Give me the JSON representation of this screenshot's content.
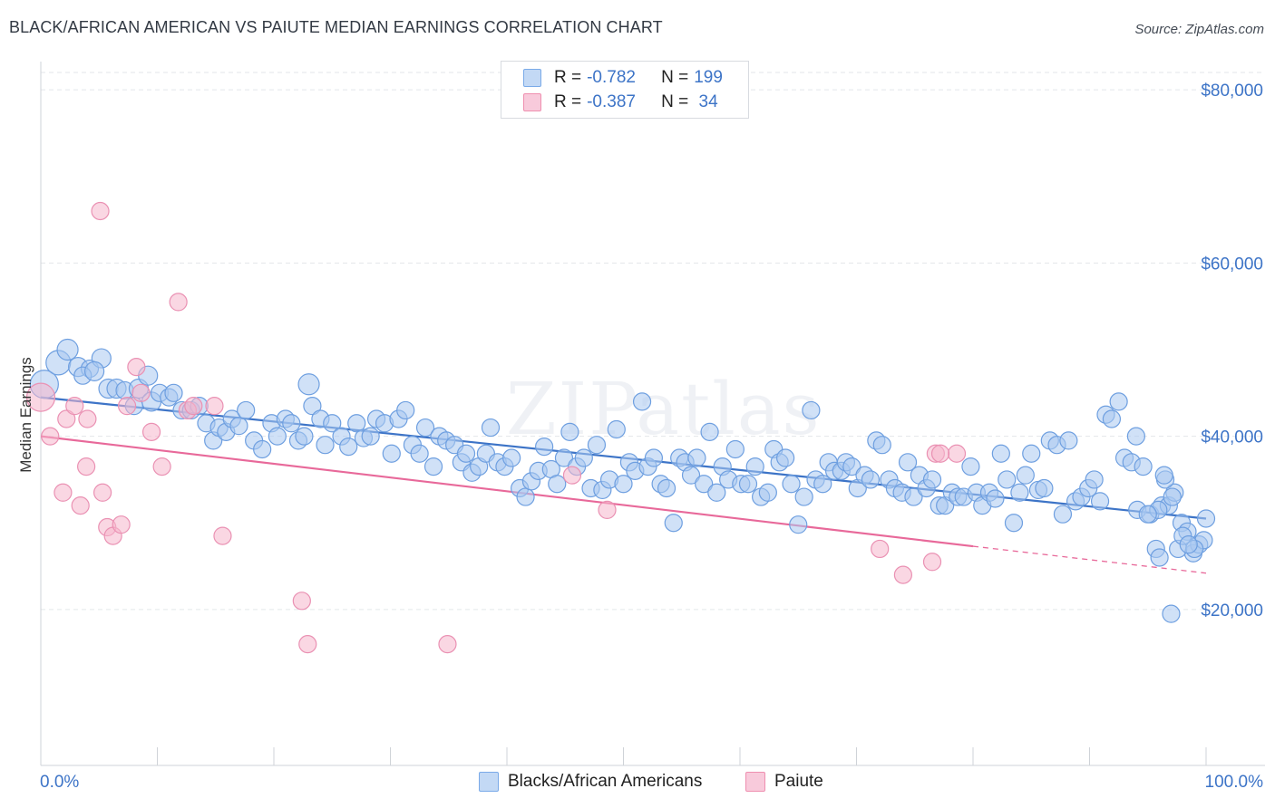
{
  "title": "BLACK/AFRICAN AMERICAN VS PAIUTE MEDIAN EARNINGS CORRELATION CHART",
  "source": "Source: ZipAtlas.com",
  "watermark": "ZIPatlas",
  "legend": {
    "rows": [
      {
        "r_label": "R = ",
        "r_value": "-0.782",
        "n_label": "N = ",
        "n_value": "199",
        "color": "#7aaae8",
        "fill": "#c3d9f5"
      },
      {
        "r_label": "R = ",
        "r_value": "-0.387",
        "n_label": "N = ",
        "n_value": " 34",
        "color": "#ef8fb0",
        "fill": "#f8cadb"
      }
    ]
  },
  "bottom_legend": [
    {
      "label": "Blacks/African Americans",
      "color": "#7aaae8",
      "fill": "#c3d9f5"
    },
    {
      "label": "Paiute",
      "color": "#ef8fb0",
      "fill": "#f8cadb"
    }
  ],
  "chart_data": {
    "type": "scatter",
    "title": "BLACK/AFRICAN AMERICAN VS PAIUTE MEDIAN EARNINGS CORRELATION CHART",
    "xlabel": "",
    "ylabel": "Median Earnings",
    "x_tick_labels": [
      "0.0%",
      "100.0%"
    ],
    "y_ticks": [
      20000,
      40000,
      60000,
      80000
    ],
    "y_tick_labels": [
      "$20,000",
      "$40,000",
      "$60,000",
      "$80,000"
    ],
    "xlim": [
      0,
      100
    ],
    "ylim": [
      2000,
      82000
    ],
    "grid": "horizontal dashed",
    "legend_position": "top-center",
    "series": [
      {
        "name": "Blacks/African Americans",
        "color": "#3d74c7",
        "point_fill": "#a9c8f0",
        "point_stroke": "#6e9fe0",
        "trend": {
          "x": [
            0,
            100
          ],
          "y": [
            44500,
            30500
          ],
          "dashed_from": null
        },
        "points": [
          [
            0.3,
            46000,
            14
          ],
          [
            1.5,
            48500,
            12
          ],
          [
            2.3,
            50000,
            10
          ],
          [
            3.2,
            48000,
            9
          ],
          [
            4.2,
            47800,
            8
          ],
          [
            5.2,
            49000,
            9
          ],
          [
            3.6,
            47000,
            8
          ],
          [
            4.6,
            47500,
            9
          ],
          [
            5.8,
            45500,
            9
          ],
          [
            6.5,
            45500,
            9
          ],
          [
            7.2,
            45300,
            8
          ],
          [
            8.4,
            45500,
            9
          ],
          [
            9.2,
            47000,
            9
          ],
          [
            9.5,
            44000,
            9
          ],
          [
            8.0,
            43500,
            8
          ],
          [
            10.2,
            45000,
            8
          ],
          [
            11.0,
            44500,
            8
          ],
          [
            11.4,
            45000,
            8
          ],
          [
            12.1,
            43000,
            8
          ],
          [
            12.9,
            43000,
            8
          ],
          [
            13.6,
            43500,
            8
          ],
          [
            14.2,
            41500,
            8
          ],
          [
            14.8,
            39500,
            8
          ],
          [
            15.3,
            41000,
            8
          ],
          [
            15.9,
            40500,
            8
          ],
          [
            16.4,
            42000,
            8
          ],
          [
            17.0,
            41200,
            8
          ],
          [
            17.6,
            43000,
            8
          ],
          [
            18.3,
            39500,
            8
          ],
          [
            19.0,
            38500,
            8
          ],
          [
            19.8,
            41500,
            8
          ],
          [
            20.3,
            40000,
            8
          ],
          [
            21.0,
            42000,
            8
          ],
          [
            21.5,
            41500,
            8
          ],
          [
            22.1,
            39500,
            8
          ],
          [
            22.6,
            40000,
            8
          ],
          [
            23.3,
            43500,
            8
          ],
          [
            24.0,
            42000,
            8
          ],
          [
            24.4,
            39000,
            8
          ],
          [
            25.0,
            41500,
            8
          ],
          [
            23.0,
            46000,
            10
          ],
          [
            25.8,
            40000,
            8
          ],
          [
            26.4,
            38800,
            8
          ],
          [
            27.1,
            41500,
            8
          ],
          [
            27.7,
            39800,
            8
          ],
          [
            28.3,
            40000,
            8
          ],
          [
            28.8,
            42000,
            8
          ],
          [
            29.5,
            41500,
            8
          ],
          [
            30.1,
            38000,
            8
          ],
          [
            30.7,
            42000,
            8
          ],
          [
            31.3,
            43000,
            8
          ],
          [
            31.9,
            39000,
            8
          ],
          [
            32.5,
            38000,
            8
          ],
          [
            33.0,
            41000,
            8
          ],
          [
            33.7,
            36500,
            8
          ],
          [
            34.2,
            40000,
            8
          ],
          [
            34.8,
            39500,
            8
          ],
          [
            35.5,
            39000,
            8
          ],
          [
            36.1,
            37000,
            8
          ],
          [
            36.5,
            38000,
            8
          ],
          [
            37.0,
            35800,
            8
          ],
          [
            37.6,
            36500,
            8
          ],
          [
            38.2,
            38000,
            8
          ],
          [
            38.6,
            41000,
            8
          ],
          [
            39.2,
            37000,
            8
          ],
          [
            39.8,
            36500,
            8
          ],
          [
            40.4,
            37500,
            8
          ],
          [
            41.1,
            34000,
            8
          ],
          [
            41.6,
            33000,
            8
          ],
          [
            42.1,
            34800,
            8
          ],
          [
            42.7,
            36000,
            8
          ],
          [
            43.2,
            38800,
            8
          ],
          [
            43.8,
            36200,
            8
          ],
          [
            44.3,
            34500,
            8
          ],
          [
            44.9,
            37500,
            8
          ],
          [
            45.4,
            40500,
            8
          ],
          [
            46.0,
            36500,
            8
          ],
          [
            46.6,
            37500,
            8
          ],
          [
            47.2,
            34000,
            8
          ],
          [
            47.7,
            39000,
            8
          ],
          [
            48.2,
            33800,
            8
          ],
          [
            48.8,
            35000,
            8
          ],
          [
            49.4,
            40800,
            8
          ],
          [
            50.0,
            34500,
            8
          ],
          [
            50.5,
            37000,
            8
          ],
          [
            51.0,
            36000,
            8
          ],
          [
            51.6,
            44000,
            8
          ],
          [
            52.1,
            36500,
            8
          ],
          [
            52.6,
            37500,
            8
          ],
          [
            53.2,
            34500,
            8
          ],
          [
            53.7,
            34000,
            8
          ],
          [
            54.3,
            30000,
            8
          ],
          [
            54.8,
            37500,
            8
          ],
          [
            55.3,
            37000,
            8
          ],
          [
            55.8,
            35500,
            8
          ],
          [
            56.3,
            37500,
            8
          ],
          [
            56.9,
            34500,
            8
          ],
          [
            57.4,
            40500,
            8
          ],
          [
            58.0,
            33500,
            8
          ],
          [
            58.5,
            36500,
            8
          ],
          [
            59.0,
            35000,
            8
          ],
          [
            59.6,
            38500,
            8
          ],
          [
            60.1,
            34500,
            8
          ],
          [
            60.7,
            34500,
            8
          ],
          [
            61.3,
            36500,
            8
          ],
          [
            61.8,
            33000,
            8
          ],
          [
            62.4,
            33500,
            8
          ],
          [
            62.9,
            38500,
            8
          ],
          [
            63.4,
            37000,
            8
          ],
          [
            63.9,
            37500,
            8
          ],
          [
            64.4,
            34500,
            8
          ],
          [
            65.0,
            29800,
            8
          ],
          [
            65.5,
            33000,
            8
          ],
          [
            66.1,
            43000,
            8
          ],
          [
            66.5,
            35000,
            8
          ],
          [
            67.1,
            34500,
            8
          ],
          [
            67.6,
            37000,
            8
          ],
          [
            68.1,
            36000,
            8
          ],
          [
            68.7,
            36000,
            8
          ],
          [
            69.1,
            37000,
            8
          ],
          [
            69.6,
            36500,
            8
          ],
          [
            70.1,
            34000,
            8
          ],
          [
            70.7,
            35500,
            8
          ],
          [
            71.2,
            35000,
            8
          ],
          [
            71.7,
            39500,
            8
          ],
          [
            72.2,
            39000,
            8
          ],
          [
            72.8,
            35000,
            8
          ],
          [
            73.3,
            34000,
            8
          ],
          [
            73.9,
            33500,
            8
          ],
          [
            74.4,
            37000,
            8
          ],
          [
            74.9,
            33000,
            8
          ],
          [
            75.4,
            35500,
            8
          ],
          [
            76.0,
            34000,
            8
          ],
          [
            76.5,
            35000,
            8
          ],
          [
            77.1,
            32000,
            8
          ],
          [
            77.6,
            32000,
            8
          ],
          [
            78.2,
            33500,
            8
          ],
          [
            78.7,
            33000,
            8
          ],
          [
            79.2,
            33000,
            8
          ],
          [
            79.8,
            36500,
            8
          ],
          [
            80.3,
            33500,
            8
          ],
          [
            80.8,
            32000,
            8
          ],
          [
            81.4,
            33500,
            8
          ],
          [
            81.9,
            32800,
            8
          ],
          [
            82.4,
            38000,
            8
          ],
          [
            82.9,
            35000,
            8
          ],
          [
            83.5,
            30000,
            8
          ],
          [
            84.0,
            33500,
            8
          ],
          [
            84.5,
            35500,
            8
          ],
          [
            85.0,
            38000,
            8
          ],
          [
            85.6,
            33800,
            8
          ],
          [
            86.1,
            34000,
            8
          ],
          [
            86.6,
            39500,
            8
          ],
          [
            87.2,
            39000,
            8
          ],
          [
            87.7,
            31000,
            8
          ],
          [
            88.2,
            39500,
            8
          ],
          [
            88.8,
            32500,
            8
          ],
          [
            89.3,
            33000,
            8
          ],
          [
            89.9,
            34000,
            8
          ],
          [
            90.4,
            35000,
            8
          ],
          [
            90.9,
            32500,
            8
          ],
          [
            91.4,
            42500,
            8
          ],
          [
            91.9,
            42000,
            8
          ],
          [
            92.5,
            44000,
            8
          ],
          [
            93.0,
            37500,
            8
          ],
          [
            93.6,
            37000,
            8
          ],
          [
            94.1,
            31500,
            8
          ],
          [
            94.6,
            36500,
            8
          ],
          [
            95.2,
            31000,
            8
          ],
          [
            95.7,
            27000,
            8
          ],
          [
            96.2,
            32000,
            8
          ],
          [
            96.8,
            32000,
            8
          ],
          [
            97.3,
            33500,
            8
          ],
          [
            97.9,
            30000,
            8
          ],
          [
            98.4,
            29000,
            8
          ],
          [
            98.9,
            26500,
            8
          ],
          [
            99.4,
            27500,
            8
          ],
          [
            99.8,
            28000,
            8
          ],
          [
            96.5,
            35000,
            8
          ],
          [
            97.1,
            33000,
            8
          ],
          [
            95.9,
            31500,
            8
          ],
          [
            96.4,
            35500,
            8
          ],
          [
            97.6,
            27000,
            8
          ],
          [
            98.0,
            28500,
            8
          ],
          [
            95.0,
            31000,
            8
          ],
          [
            94.0,
            40000,
            8
          ],
          [
            96.0,
            26000,
            8
          ],
          [
            97.0,
            19500,
            8
          ],
          [
            99.0,
            27000,
            8
          ],
          [
            98.5,
            27500,
            8
          ],
          [
            100.0,
            30500,
            8
          ]
        ]
      },
      {
        "name": "Paiute",
        "color": "#e8699a",
        "point_fill": "#f5b6cc",
        "point_stroke": "#ea91b3",
        "trend": {
          "x": [
            0,
            80,
            100
          ],
          "y": [
            40000,
            27300,
            24200
          ],
          "dashed_from": 80
        },
        "points": [
          [
            0.0,
            44500,
            14
          ],
          [
            0.8,
            40000,
            8
          ],
          [
            1.9,
            33500,
            8
          ],
          [
            2.2,
            42000,
            8
          ],
          [
            2.9,
            43500,
            8
          ],
          [
            3.4,
            32000,
            8
          ],
          [
            3.9,
            36500,
            8
          ],
          [
            4.0,
            42000,
            8
          ],
          [
            5.1,
            66000,
            8
          ],
          [
            5.3,
            33500,
            8
          ],
          [
            5.7,
            29500,
            8
          ],
          [
            6.2,
            28500,
            8
          ],
          [
            6.9,
            29800,
            8
          ],
          [
            7.4,
            43500,
            8
          ],
          [
            8.2,
            48000,
            8
          ],
          [
            8.6,
            45000,
            8
          ],
          [
            9.5,
            40500,
            8
          ],
          [
            10.4,
            36500,
            8
          ],
          [
            11.8,
            55500,
            8
          ],
          [
            12.6,
            43000,
            8
          ],
          [
            13.1,
            43500,
            8
          ],
          [
            14.9,
            43500,
            8
          ],
          [
            15.6,
            28500,
            8
          ],
          [
            22.4,
            21000,
            8
          ],
          [
            22.9,
            16000,
            8
          ],
          [
            34.9,
            16000,
            8
          ],
          [
            45.6,
            35500,
            8
          ],
          [
            48.6,
            31500,
            8
          ],
          [
            72.0,
            27000,
            8
          ],
          [
            74.0,
            24000,
            8
          ],
          [
            76.5,
            25500,
            8
          ],
          [
            76.8,
            38000,
            8
          ],
          [
            78.6,
            38000,
            8
          ],
          [
            77.2,
            38000,
            8
          ]
        ]
      }
    ]
  }
}
